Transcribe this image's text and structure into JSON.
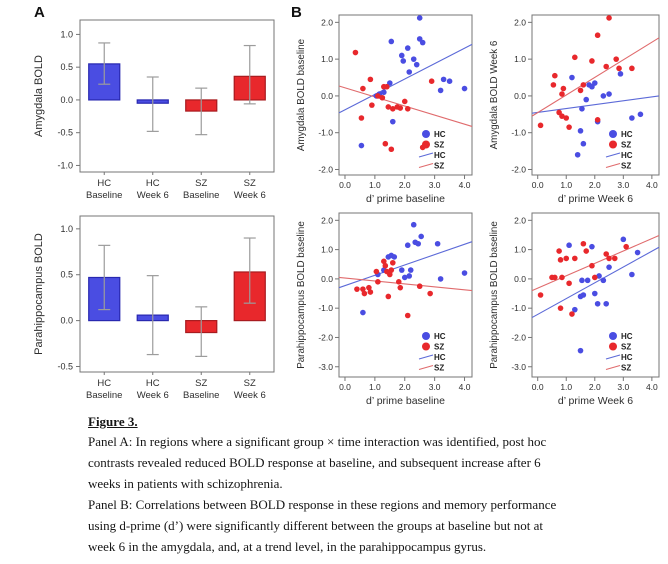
{
  "panels": {
    "a_label": "A",
    "b_label": "B"
  },
  "colors": {
    "hc_fill": "#4a4de2",
    "hc_border": "#2828b0",
    "sz_fill": "#e8282c",
    "sz_border": "#a81b1f",
    "hc_line": "#5c6ad8",
    "sz_line": "#e06b6d",
    "error_bar": "#9c9c9c",
    "frame": "#757575",
    "text": "#2e2e2e"
  },
  "legend": {
    "hc_point": "HC",
    "sz_point": "SZ",
    "hc_line": "HC",
    "sz_line": "SZ"
  },
  "chart_data": [
    {
      "id": "bar_amygdala",
      "type": "bar",
      "ylabel": "Amygdala BOLD",
      "ylim": [
        -1.1,
        1.22
      ],
      "yticks": [
        -1.0,
        -0.5,
        0.0,
        0.5,
        1.0
      ],
      "categories": [
        {
          "line1": "HC",
          "line2": "Baseline",
          "group": "HC"
        },
        {
          "line1": "HC",
          "line2": "Week 6",
          "group": "HC"
        },
        {
          "line1": "SZ",
          "line2": "Baseline",
          "group": "SZ"
        },
        {
          "line1": "SZ",
          "line2": "Week 6",
          "group": "SZ"
        }
      ],
      "values": [
        0.55,
        -0.05,
        -0.17,
        0.36
      ],
      "err_low": [
        0.24,
        -0.48,
        -0.53,
        -0.06
      ],
      "err_high": [
        0.87,
        0.35,
        0.18,
        0.83
      ]
    },
    {
      "id": "bar_parahippocampus",
      "type": "bar",
      "ylabel": "Parahippocampus BOLD",
      "ylim": [
        -0.56,
        1.14
      ],
      "yticks": [
        -0.5,
        0.0,
        0.5,
        1.0
      ],
      "categories": [
        {
          "line1": "HC",
          "line2": "Baseline",
          "group": "HC"
        },
        {
          "line1": "HC",
          "line2": "Week 6",
          "group": "HC"
        },
        {
          "line1": "SZ",
          "line2": "Baseline",
          "group": "SZ"
        },
        {
          "line1": "SZ",
          "line2": "Week 6",
          "group": "SZ"
        }
      ],
      "values": [
        0.47,
        0.06,
        -0.13,
        0.53
      ],
      "err_low": [
        0.12,
        -0.37,
        -0.39,
        0.19
      ],
      "err_high": [
        0.82,
        0.49,
        0.15,
        0.9
      ]
    },
    {
      "id": "scatter_amygdala_baseline",
      "type": "scatter",
      "xlabel": "d’ prime baseline",
      "ylabel": "Amygdala BOLD baseline",
      "xlim": [
        -0.2,
        4.25
      ],
      "ylim": [
        -2.15,
        2.2
      ],
      "xticks": [
        0.0,
        1.0,
        2.0,
        3.0,
        4.0
      ],
      "yticks": [
        -2.0,
        -1.0,
        0.0,
        1.0,
        2.0
      ],
      "series": [
        {
          "name": "HC",
          "points": [
            [
              1.05,
              0.0
            ],
            [
              1.15,
              0.05
            ],
            [
              1.3,
              0.1
            ],
            [
              1.5,
              0.35
            ],
            [
              1.55,
              1.48
            ],
            [
              1.9,
              1.1
            ],
            [
              1.95,
              0.95
            ],
            [
              2.1,
              1.3
            ],
            [
              2.15,
              0.65
            ],
            [
              2.3,
              1.0
            ],
            [
              2.4,
              0.85
            ],
            [
              2.5,
              1.55
            ],
            [
              2.6,
              1.45
            ],
            [
              2.5,
              2.12
            ],
            [
              3.2,
              0.15
            ],
            [
              3.3,
              0.45
            ],
            [
              3.5,
              0.4
            ],
            [
              4.0,
              0.2
            ],
            [
              1.6,
              -0.7
            ],
            [
              0.55,
              -1.35
            ]
          ]
        },
        {
          "name": "SZ",
          "points": [
            [
              0.35,
              1.18
            ],
            [
              0.6,
              0.2
            ],
            [
              0.55,
              -0.6
            ],
            [
              0.85,
              0.45
            ],
            [
              0.9,
              -0.25
            ],
            [
              1.1,
              0.0
            ],
            [
              1.25,
              -0.05
            ],
            [
              1.3,
              0.25
            ],
            [
              1.4,
              0.25
            ],
            [
              1.45,
              -0.3
            ],
            [
              1.6,
              -0.35
            ],
            [
              1.75,
              -0.3
            ],
            [
              1.85,
              -0.33
            ],
            [
              2.0,
              -0.15
            ],
            [
              2.1,
              -0.35
            ],
            [
              2.9,
              0.4
            ],
            [
              1.35,
              -1.3
            ],
            [
              1.55,
              -1.45
            ],
            [
              2.6,
              -1.4
            ]
          ]
        }
      ],
      "lines": [
        {
          "name": "HC",
          "x1": -0.2,
          "y1": -0.46,
          "x2": 4.25,
          "y2": 1.4
        },
        {
          "name": "SZ",
          "x1": -0.2,
          "y1": 0.27,
          "x2": 4.25,
          "y2": -0.83
        }
      ]
    },
    {
      "id": "scatter_amygdala_week6",
      "type": "scatter",
      "xlabel": "d’ prime Week 6",
      "ylabel": "Amygdala BOLD Week 6",
      "xlim": [
        -0.2,
        4.25
      ],
      "ylim": [
        -2.15,
        2.2
      ],
      "xticks": [
        0.0,
        1.0,
        2.0,
        3.0,
        4.0
      ],
      "yticks": [
        -2.0,
        -1.0,
        0.0,
        1.0,
        2.0
      ],
      "series": [
        {
          "name": "HC",
          "points": [
            [
              1.2,
              0.5
            ],
            [
              1.4,
              -1.6
            ],
            [
              1.5,
              -0.95
            ],
            [
              1.55,
              -0.35
            ],
            [
              1.6,
              -1.3
            ],
            [
              1.7,
              -0.1
            ],
            [
              1.8,
              0.3
            ],
            [
              1.9,
              0.25
            ],
            [
              2.0,
              0.35
            ],
            [
              2.1,
              -0.7
            ],
            [
              2.3,
              0.0
            ],
            [
              2.5,
              0.05
            ],
            [
              2.9,
              0.6
            ],
            [
              3.3,
              -0.6
            ],
            [
              3.6,
              -0.5
            ]
          ]
        },
        {
          "name": "SZ",
          "points": [
            [
              0.1,
              -0.8
            ],
            [
              0.55,
              0.3
            ],
            [
              0.6,
              0.55
            ],
            [
              0.75,
              -0.45
            ],
            [
              0.85,
              -0.55
            ],
            [
              0.85,
              0.05
            ],
            [
              0.9,
              0.2
            ],
            [
              1.0,
              -0.6
            ],
            [
              1.1,
              -0.85
            ],
            [
              1.3,
              1.05
            ],
            [
              1.5,
              0.15
            ],
            [
              1.6,
              0.3
            ],
            [
              1.9,
              0.95
            ],
            [
              2.1,
              1.65
            ],
            [
              2.1,
              -0.65
            ],
            [
              2.4,
              0.8
            ],
            [
              2.75,
              1.0
            ],
            [
              2.85,
              0.75
            ],
            [
              3.3,
              0.75
            ],
            [
              2.5,
              2.12
            ]
          ]
        }
      ],
      "lines": [
        {
          "name": "HC",
          "x1": -0.2,
          "y1": -0.47,
          "x2": 4.25,
          "y2": 0.0
        },
        {
          "name": "SZ",
          "x1": -0.2,
          "y1": -0.55,
          "x2": 4.25,
          "y2": 1.58
        }
      ]
    },
    {
      "id": "scatter_parahippocampus_baseline",
      "type": "scatter",
      "xlabel": "d’ prime baseline",
      "ylabel": "Parahippocampus BOLD baseline",
      "xlim": [
        -0.2,
        4.25
      ],
      "ylim": [
        -3.35,
        2.25
      ],
      "xticks": [
        0.0,
        1.0,
        2.0,
        3.0,
        4.0
      ],
      "yticks": [
        -3.0,
        -2.0,
        -1.0,
        0.0,
        1.0,
        2.0
      ],
      "series": [
        {
          "name": "HC",
          "points": [
            [
              0.6,
              -1.15
            ],
            [
              1.1,
              0.15
            ],
            [
              1.3,
              0.3
            ],
            [
              1.45,
              0.75
            ],
            [
              1.55,
              0.8
            ],
            [
              1.65,
              0.75
            ],
            [
              1.9,
              0.3
            ],
            [
              2.0,
              0.05
            ],
            [
              2.1,
              1.15
            ],
            [
              2.2,
              0.3
            ],
            [
              2.3,
              1.85
            ],
            [
              2.35,
              1.25
            ],
            [
              2.45,
              1.2
            ],
            [
              2.55,
              1.45
            ],
            [
              3.1,
              1.2
            ],
            [
              3.2,
              0.0
            ],
            [
              4.0,
              0.2
            ],
            [
              2.15,
              0.1
            ]
          ]
        },
        {
          "name": "SZ",
          "points": [
            [
              0.4,
              -0.35
            ],
            [
              0.6,
              -0.35
            ],
            [
              0.65,
              -0.5
            ],
            [
              0.8,
              -0.3
            ],
            [
              0.85,
              -0.45
            ],
            [
              1.05,
              0.25
            ],
            [
              1.1,
              -0.1
            ],
            [
              1.3,
              0.6
            ],
            [
              1.35,
              0.45
            ],
            [
              1.4,
              0.25
            ],
            [
              1.45,
              -0.6
            ],
            [
              1.5,
              0.15
            ],
            [
              1.55,
              0.3
            ],
            [
              1.6,
              0.55
            ],
            [
              1.8,
              -0.1
            ],
            [
              1.85,
              -0.3
            ],
            [
              2.1,
              -1.25
            ],
            [
              2.5,
              -0.25
            ],
            [
              2.85,
              -0.5
            ]
          ]
        }
      ],
      "lines": [
        {
          "name": "HC",
          "x1": -0.2,
          "y1": -0.3,
          "x2": 4.25,
          "y2": 1.27
        },
        {
          "name": "SZ",
          "x1": -0.2,
          "y1": 0.05,
          "x2": 4.25,
          "y2": -0.4
        }
      ]
    },
    {
      "id": "scatter_parahippocampus_week6",
      "type": "scatter",
      "xlabel": "d’ prime Week 6",
      "ylabel": "Parahippocampus BOLD baseline",
      "xlim": [
        -0.2,
        4.25
      ],
      "ylim": [
        -3.35,
        2.25
      ],
      "xticks": [
        0.0,
        1.0,
        2.0,
        3.0,
        4.0
      ],
      "yticks": [
        -3.0,
        -2.0,
        -1.0,
        0.0,
        1.0,
        2.0
      ],
      "series": [
        {
          "name": "HC",
          "points": [
            [
              1.1,
              1.15
            ],
            [
              1.3,
              -1.05
            ],
            [
              1.5,
              -2.45
            ],
            [
              1.5,
              -0.6
            ],
            [
              1.6,
              -0.55
            ],
            [
              1.55,
              -0.05
            ],
            [
              1.75,
              -0.05
            ],
            [
              1.9,
              1.1
            ],
            [
              2.0,
              -0.5
            ],
            [
              2.1,
              -0.85
            ],
            [
              2.15,
              0.1
            ],
            [
              2.3,
              -0.05
            ],
            [
              2.4,
              -0.85
            ],
            [
              2.5,
              0.4
            ],
            [
              3.0,
              1.35
            ],
            [
              3.3,
              0.15
            ],
            [
              3.5,
              0.9
            ]
          ]
        },
        {
          "name": "SZ",
          "points": [
            [
              0.1,
              -0.55
            ],
            [
              0.5,
              0.05
            ],
            [
              0.6,
              0.05
            ],
            [
              0.75,
              0.95
            ],
            [
              0.8,
              0.65
            ],
            [
              0.8,
              -1.0
            ],
            [
              0.85,
              0.05
            ],
            [
              1.0,
              0.7
            ],
            [
              1.1,
              -0.15
            ],
            [
              1.2,
              -1.2
            ],
            [
              1.3,
              0.7
            ],
            [
              1.6,
              1.2
            ],
            [
              1.7,
              0.95
            ],
            [
              1.9,
              0.45
            ],
            [
              2.0,
              0.05
            ],
            [
              2.4,
              0.85
            ],
            [
              2.5,
              0.7
            ],
            [
              2.7,
              0.7
            ],
            [
              3.1,
              1.1
            ]
          ]
        }
      ],
      "lines": [
        {
          "name": "HC",
          "x1": -0.2,
          "y1": -1.32,
          "x2": 4.25,
          "y2": 1.08
        },
        {
          "name": "SZ",
          "x1": -0.2,
          "y1": -0.4,
          "x2": 4.25,
          "y2": 1.48
        }
      ]
    }
  ],
  "caption": {
    "title": "Figure 3.",
    "lines": [
      "Panel A: In regions where a significant group × time interaction was identified, post hoc",
      "contrasts revealed reduced BOLD response at baseline, and subsequent increase after 6",
      "weeks in patients with schizophrenia.",
      "Panel B: Correlations between BOLD response in these regions and memory performance",
      "using d-prime (d’) were significantly different between the groups at baseline but not at",
      "week 6 in the amygdala, and, at a trend level, in the parahippocampus gyrus."
    ]
  }
}
